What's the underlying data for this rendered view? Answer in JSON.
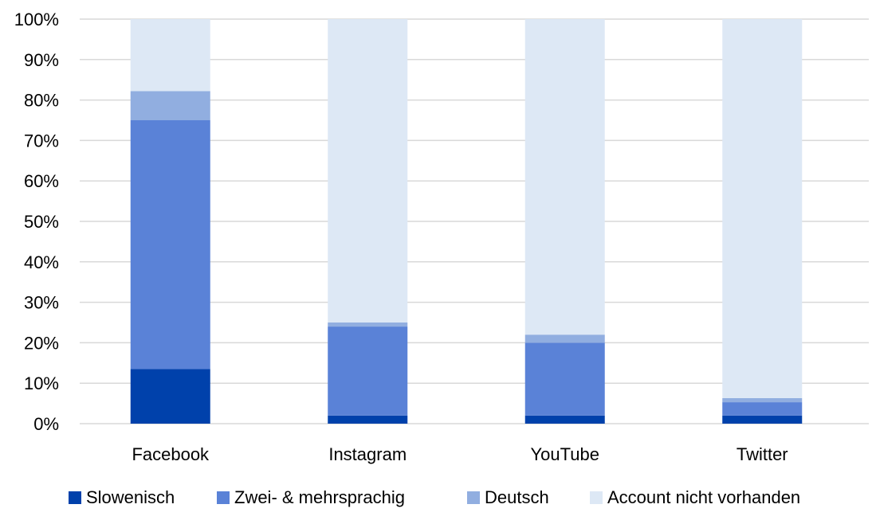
{
  "chart_data": {
    "type": "bar",
    "stacked": true,
    "normalized": true,
    "categories": [
      "Facebook",
      "Instagram",
      "YouTube",
      "Twitter"
    ],
    "series": [
      {
        "name": "Slowenisch",
        "color": "#0041ab",
        "values": [
          13.5,
          2,
          2,
          2
        ]
      },
      {
        "name": "Zwei- & mehrsprachig",
        "color": "#5a82d7",
        "values": [
          61.5,
          22,
          18,
          3.3
        ]
      },
      {
        "name": "Deutsch",
        "color": "#91aee0",
        "values": [
          7.2,
          1,
          2,
          1
        ]
      },
      {
        "name": "Account nicht vorhanden",
        "color": "#dde8f5",
        "values": [
          17.8,
          75,
          78,
          93.7
        ]
      }
    ],
    "ylim": [
      0,
      100
    ],
    "yticks": [
      "0%",
      "10%",
      "20%",
      "30%",
      "40%",
      "50%",
      "60%",
      "70%",
      "80%",
      "90%",
      "100%"
    ],
    "grid": true,
    "legend_position": "bottom",
    "title": "",
    "xlabel": "",
    "ylabel": ""
  }
}
